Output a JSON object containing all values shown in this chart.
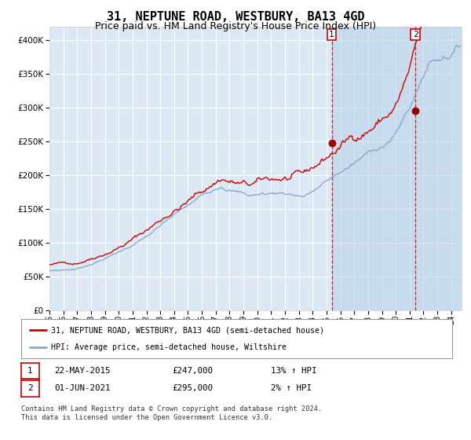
{
  "title": "31, NEPTUNE ROAD, WESTBURY, BA13 4GD",
  "subtitle": "Price paid vs. HM Land Registry's House Price Index (HPI)",
  "title_fontsize": 11,
  "subtitle_fontsize": 9,
  "ylim": [
    0,
    420000
  ],
  "yticks": [
    0,
    50000,
    100000,
    150000,
    200000,
    250000,
    300000,
    350000,
    400000
  ],
  "ytick_labels": [
    "£0",
    "£50K",
    "£100K",
    "£150K",
    "£200K",
    "£250K",
    "£300K",
    "£350K",
    "£400K"
  ],
  "bg_color": "#ffffff",
  "plot_bg_color": "#dce9f5",
  "grid_color": "#ffffff",
  "red_line_color": "#cc0000",
  "blue_line_color": "#88aacc",
  "sale1_date_num": 2015.38,
  "sale1_price": 247000,
  "sale2_date_num": 2021.42,
  "sale2_price": 295000,
  "legend_label_red": "31, NEPTUNE ROAD, WESTBURY, BA13 4GD (semi-detached house)",
  "legend_label_blue": "HPI: Average price, semi-detached house, Wiltshire",
  "note1_date": "22-MAY-2015",
  "note1_price": "£247,000",
  "note1_hpi": "13% ↑ HPI",
  "note2_date": "01-JUN-2021",
  "note2_price": "£295,000",
  "note2_hpi": "2% ↑ HPI",
  "footer": "Contains HM Land Registry data © Crown copyright and database right 2024.\nThis data is licensed under the Open Government Licence v3.0.",
  "xstart": 1995.0,
  "xend": 2024.75,
  "shade_color": "#b8d0e8",
  "shade_alpha": 0.55
}
